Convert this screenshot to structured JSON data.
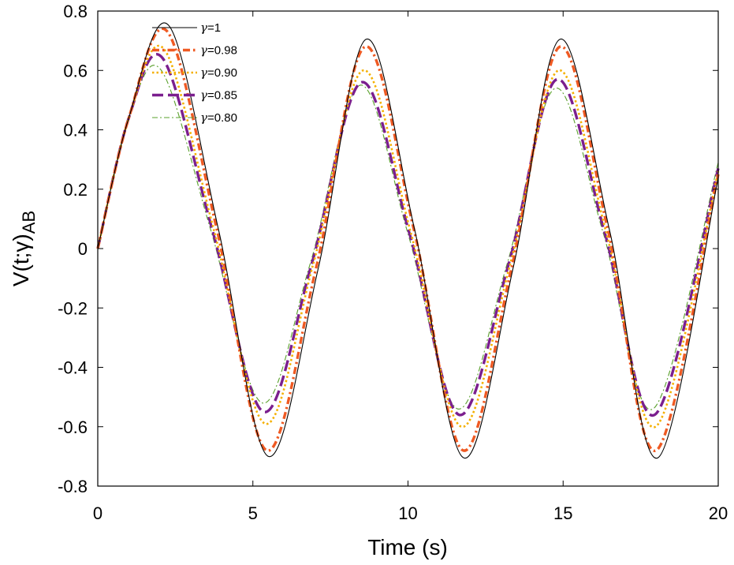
{
  "chart_data": {
    "type": "line",
    "title": "",
    "xlabel": "Time (s)",
    "ylabel": {
      "main": "V(t;γ)",
      "subscript": "AB"
    },
    "xlim": [
      0,
      20
    ],
    "ylim": [
      -0.8,
      0.8
    ],
    "x_ticks": [
      0,
      5,
      10,
      15,
      20
    ],
    "x_tick_labels": [
      "0",
      "5",
      "10",
      "15",
      "20"
    ],
    "y_ticks": [
      0.8,
      0.6,
      0.4,
      0.2,
      0,
      -0.2,
      -0.4,
      -0.6,
      -0.8
    ],
    "y_tick_labels": [
      "0.8",
      "0.6",
      "0.4",
      "0.2",
      "0",
      "-0.2",
      "-0.4",
      "-0.6",
      "-0.8"
    ],
    "grid": false,
    "legend_position": "top-left",
    "series": [
      {
        "name": "γ=1",
        "greek": "γ",
        "value_text": "=1",
        "color": "#000000",
        "style": "solid",
        "x": [
          0,
          1,
          2.3,
          3.9,
          5.5,
          7.1,
          8.65,
          10.2,
          11.8,
          13.4,
          14.9,
          16.5,
          18.05,
          20
        ],
        "y": [
          0,
          0.44,
          0.75,
          0.06,
          -0.7,
          -0.07,
          0.705,
          0.07,
          -0.705,
          -0.06,
          0.705,
          0.06,
          -0.705,
          0.24
        ]
      },
      {
        "name": "γ=0.98",
        "greek": "γ",
        "value_text": "=0.98",
        "color": "#ef5a23",
        "style": "dashdot",
        "x": [
          0,
          1,
          2.25,
          3.85,
          5.45,
          7.05,
          8.62,
          10.2,
          11.78,
          13.35,
          14.9,
          16.45,
          18.0,
          20
        ],
        "y": [
          0,
          0.44,
          0.73,
          0.06,
          -0.68,
          -0.06,
          0.68,
          0.06,
          -0.68,
          -0.06,
          0.68,
          0.06,
          -0.68,
          0.25
        ]
      },
      {
        "name": "γ=0.90",
        "greek": "γ",
        "value_text": "=0.90",
        "color": "#f4b000",
        "style": "dotted",
        "x": [
          0,
          1,
          2.15,
          3.75,
          5.4,
          6.95,
          8.55,
          10.1,
          11.72,
          13.3,
          14.85,
          16.4,
          17.98,
          20
        ],
        "y": [
          0,
          0.44,
          0.67,
          0.06,
          -0.59,
          -0.05,
          0.6,
          0.05,
          -0.6,
          -0.05,
          0.6,
          0.05,
          -0.6,
          0.26
        ]
      },
      {
        "name": "γ=0.85",
        "greek": "γ",
        "value_text": "=0.85",
        "color": "#7b1f8e",
        "style": "dashed",
        "x": [
          0,
          1,
          2.1,
          3.7,
          5.35,
          6.9,
          8.5,
          10.05,
          11.65,
          13.25,
          14.8,
          16.35,
          17.95,
          20
        ],
        "y": [
          0,
          0.44,
          0.64,
          0.06,
          -0.55,
          -0.05,
          0.56,
          0.05,
          -0.56,
          -0.05,
          0.57,
          0.05,
          -0.56,
          0.27
        ]
      },
      {
        "name": "γ=0.80",
        "greek": "γ",
        "value_text": "=0.80",
        "color": "#5aa02c",
        "style": "dashdot-thin",
        "x": [
          0,
          1,
          2.05,
          3.65,
          5.3,
          6.85,
          8.45,
          10.0,
          11.6,
          13.2,
          14.75,
          16.3,
          17.9,
          20
        ],
        "y": [
          0,
          0.44,
          0.6,
          0.06,
          -0.52,
          -0.05,
          0.55,
          0.05,
          -0.54,
          -0.05,
          0.54,
          0.05,
          -0.54,
          0.29
        ]
      }
    ]
  }
}
